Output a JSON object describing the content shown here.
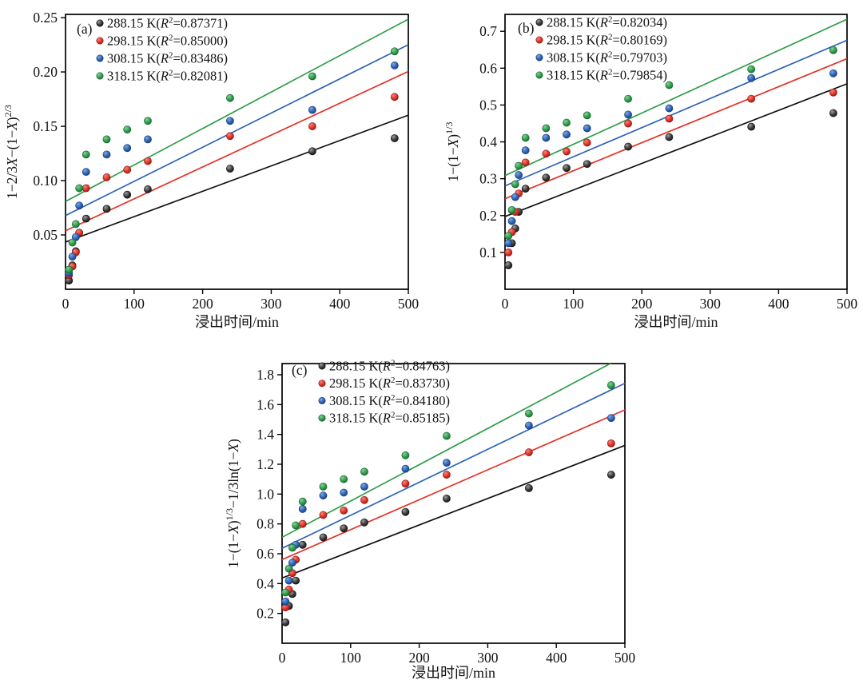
{
  "figure": {
    "description": "Leaching kinetics model fitting plots at four temperatures",
    "xlabel": "浸出时间/min"
  },
  "chart_data": [
    {
      "type": "scatter",
      "panel_tag": "(a)",
      "xlabel": "浸出时间/min",
      "ylabel": "1-2/3X-(1-X)^(2/3)",
      "ylabel_segments": [
        {
          "t": "1−2/3"
        },
        {
          "t": "X",
          "i": 1
        },
        {
          "t": "−(1−"
        },
        {
          "t": "X",
          "i": 1
        },
        {
          "t": ")"
        },
        {
          "t": "2/3",
          "sup": 1
        }
      ],
      "xlim": [
        0,
        500
      ],
      "ylim": [
        0,
        0.253
      ],
      "xticks": [
        0,
        100,
        200,
        300,
        400,
        500
      ],
      "xtick_labels": [
        "0",
        "100",
        "200",
        "300",
        "400",
        "500"
      ],
      "yticks": [
        0.05,
        0.1,
        0.15,
        0.2,
        0.25
      ],
      "ytick_labels": [
        "0.05",
        "0.10",
        "0.15",
        "0.20",
        "0.25"
      ],
      "legend_position": "top-left",
      "grid": false,
      "x": [
        5,
        10,
        15,
        20,
        30,
        60,
        90,
        120,
        240,
        360,
        480
      ],
      "series": [
        {
          "name": "288.15 K",
          "r2": "0.87371",
          "color": "#3b3b3b",
          "edge": "#0f0f0f",
          "hi": "#9f9f9f",
          "line": "#111111",
          "values": [
            0.008,
            0.022,
            0.035,
            0.052,
            0.065,
            0.074,
            0.087,
            0.092,
            0.111,
            0.127,
            0.139
          ]
        },
        {
          "name": "298.15 K",
          "r2": "0.85000",
          "color": "#e23227",
          "edge": "#8c1711",
          "hi": "#f2867e",
          "line": "#e23227",
          "values": [
            0.013,
            0.021,
            0.034,
            0.052,
            0.093,
            0.103,
            0.11,
            0.118,
            0.141,
            0.15,
            0.177
          ]
        },
        {
          "name": "308.15 K",
          "r2": "0.83486",
          "color": "#2e63b8",
          "edge": "#163a74",
          "hi": "#82a8de",
          "line": "#2e63b8",
          "values": [
            0.015,
            0.03,
            0.048,
            0.077,
            0.108,
            0.124,
            0.13,
            0.138,
            0.155,
            0.165,
            0.206
          ]
        },
        {
          "name": "318.15 K",
          "r2": "0.82081",
          "color": "#2f9e49",
          "edge": "#16622e",
          "hi": "#85d09c",
          "line": "#2f9e49",
          "values": [
            0.018,
            0.043,
            0.06,
            0.093,
            0.124,
            0.138,
            0.147,
            0.155,
            0.176,
            0.196,
            0.219
          ]
        }
      ]
    },
    {
      "type": "scatter",
      "panel_tag": "(b)",
      "xlabel": "浸出时间/min",
      "ylabel": "1-(1-X)^(1/3)",
      "ylabel_segments": [
        {
          "t": "1−(1−"
        },
        {
          "t": "X",
          "i": 1
        },
        {
          "t": ")"
        },
        {
          "t": "1/3",
          "sup": 1
        }
      ],
      "xlim": [
        0,
        500
      ],
      "ylim": [
        0,
        0.746
      ],
      "xticks": [
        0,
        100,
        200,
        300,
        400,
        500
      ],
      "xtick_labels": [
        "0",
        "100",
        "200",
        "300",
        "400",
        "500"
      ],
      "yticks": [
        0.1,
        0.2,
        0.3,
        0.4,
        0.5,
        0.6,
        0.7
      ],
      "ytick_labels": [
        "0.1",
        "0.2",
        "0.3",
        "0.4",
        "0.5",
        "0.6",
        "0.7"
      ],
      "legend_position": "top-left",
      "grid": false,
      "x": [
        5,
        10,
        15,
        20,
        30,
        60,
        90,
        120,
        180,
        240,
        360,
        480
      ],
      "series": [
        {
          "name": "288.15 K",
          "r2": "0.82034",
          "color": "#3b3b3b",
          "edge": "#0f0f0f",
          "hi": "#9f9f9f",
          "line": "#111111",
          "values": [
            0.065,
            0.125,
            0.165,
            0.21,
            0.273,
            0.303,
            0.329,
            0.34,
            0.387,
            0.413,
            0.441,
            0.478
          ]
        },
        {
          "name": "298.15 K",
          "r2": "0.80169",
          "color": "#e23227",
          "edge": "#8c1711",
          "hi": "#f2867e",
          "line": "#e23227",
          "values": [
            0.1,
            0.155,
            0.21,
            0.26,
            0.344,
            0.368,
            0.374,
            0.398,
            0.45,
            0.463,
            0.517,
            0.534
          ]
        },
        {
          "name": "308.15 K",
          "r2": "0.79703",
          "color": "#2e63b8",
          "edge": "#163a74",
          "hi": "#82a8de",
          "line": "#2e63b8",
          "values": [
            0.125,
            0.185,
            0.25,
            0.31,
            0.377,
            0.411,
            0.42,
            0.437,
            0.474,
            0.491,
            0.573,
            0.586
          ]
        },
        {
          "name": "318.15 K",
          "r2": "0.79854",
          "color": "#2f9e49",
          "edge": "#16622e",
          "hi": "#85d09c",
          "line": "#2f9e49",
          "values": [
            0.145,
            0.215,
            0.285,
            0.335,
            0.411,
            0.437,
            0.452,
            0.472,
            0.517,
            0.554,
            0.597,
            0.649
          ]
        }
      ]
    },
    {
      "type": "scatter",
      "panel_tag": "(c)",
      "xlabel": "浸出时间/min",
      "ylabel": "1-(1-X)^(1/3)-1/3ln(1-X)",
      "ylabel_segments": [
        {
          "t": "1−(1−"
        },
        {
          "t": "X",
          "i": 1
        },
        {
          "t": ")"
        },
        {
          "t": "1/3",
          "sup": 1
        },
        {
          "t": "−1/3ln(1−"
        },
        {
          "t": "X",
          "i": 1
        },
        {
          "t": ")"
        }
      ],
      "xlim": [
        0,
        500
      ],
      "ylim": [
        0,
        1.875
      ],
      "xticks": [
        0,
        100,
        200,
        300,
        400,
        500
      ],
      "xtick_labels": [
        "0",
        "100",
        "200",
        "300",
        "400",
        "500"
      ],
      "yticks": [
        0.2,
        0.4,
        0.6,
        0.8,
        1.0,
        1.2,
        1.4,
        1.6,
        1.8
      ],
      "ytick_labels": [
        "0.2",
        "0.4",
        "0.6",
        "0.8",
        "1.0",
        "1.2",
        "1.4",
        "1.6",
        "1.8"
      ],
      "legend_position": "top-left",
      "grid": false,
      "x": [
        5,
        10,
        15,
        20,
        30,
        60,
        90,
        120,
        180,
        240,
        360,
        480
      ],
      "series": [
        {
          "name": "288.15 K",
          "r2": "0.84763",
          "color": "#3b3b3b",
          "edge": "#0f0f0f",
          "hi": "#9f9f9f",
          "line": "#111111",
          "values": [
            0.14,
            0.25,
            0.33,
            0.42,
            0.66,
            0.71,
            0.77,
            0.81,
            0.88,
            0.97,
            1.04,
            1.13
          ]
        },
        {
          "name": "298.15 K",
          "r2": "0.83730",
          "color": "#e23227",
          "edge": "#8c1711",
          "hi": "#f2867e",
          "line": "#e23227",
          "values": [
            0.24,
            0.36,
            0.47,
            0.56,
            0.8,
            0.86,
            0.89,
            0.96,
            1.07,
            1.13,
            1.28,
            1.34
          ]
        },
        {
          "name": "308.15 K",
          "r2": "0.84180",
          "color": "#2e63b8",
          "edge": "#163a74",
          "hi": "#82a8de",
          "line": "#2e63b8",
          "values": [
            0.28,
            0.42,
            0.54,
            0.66,
            0.9,
            0.99,
            1.01,
            1.05,
            1.17,
            1.21,
            1.46,
            1.51
          ]
        },
        {
          "name": "318.15 K",
          "r2": "0.85185",
          "color": "#2f9e49",
          "edge": "#16622e",
          "hi": "#85d09c",
          "line": "#2f9e49",
          "values": [
            0.34,
            0.5,
            0.64,
            0.79,
            0.95,
            1.05,
            1.1,
            1.15,
            1.26,
            1.39,
            1.54,
            1.73
          ]
        }
      ]
    }
  ]
}
